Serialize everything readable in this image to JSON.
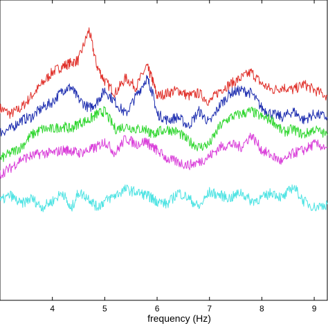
{
  "chart_data": {
    "type": "line",
    "title": "",
    "xlabel": "frequency (Hz)",
    "ylabel": "",
    "xlim": [
      3.0,
      9.25
    ],
    "ylim": [
      0,
      1
    ],
    "grid": false,
    "x_ticks": [
      {
        "value": 4,
        "label": "4"
      },
      {
        "value": 5,
        "label": "5"
      },
      {
        "value": 6,
        "label": "6"
      },
      {
        "value": 7,
        "label": "7"
      },
      {
        "value": 8,
        "label": "8"
      },
      {
        "value": 9,
        "label": "9"
      }
    ],
    "series": [
      {
        "color": "#e0302a",
        "x": [
          3.0,
          3.2,
          3.4,
          3.6,
          3.8,
          4.0,
          4.2,
          4.35,
          4.5,
          4.7,
          4.85,
          5.0,
          5.2,
          5.4,
          5.6,
          5.8,
          5.9,
          6.0,
          6.2,
          6.4,
          6.6,
          6.8,
          7.0,
          7.2,
          7.4,
          7.6,
          7.8,
          8.0,
          8.2,
          8.4,
          8.6,
          8.8,
          9.0,
          9.25
        ],
        "y": [
          0.64,
          0.62,
          0.64,
          0.68,
          0.72,
          0.76,
          0.78,
          0.79,
          0.8,
          0.9,
          0.78,
          0.73,
          0.69,
          0.74,
          0.71,
          0.78,
          0.74,
          0.68,
          0.69,
          0.7,
          0.68,
          0.69,
          0.66,
          0.7,
          0.72,
          0.74,
          0.76,
          0.72,
          0.7,
          0.71,
          0.7,
          0.72,
          0.7,
          0.68
        ]
      },
      {
        "color": "#1f2fb0",
        "x": [
          3.0,
          3.2,
          3.4,
          3.6,
          3.8,
          4.0,
          4.2,
          4.35,
          4.5,
          4.7,
          4.85,
          5.0,
          5.2,
          5.4,
          5.6,
          5.8,
          5.9,
          6.0,
          6.2,
          6.4,
          6.6,
          6.8,
          7.0,
          7.2,
          7.4,
          7.6,
          7.8,
          8.0,
          8.2,
          8.4,
          8.6,
          8.8,
          9.0,
          9.25
        ],
        "y": [
          0.56,
          0.57,
          0.6,
          0.61,
          0.64,
          0.66,
          0.7,
          0.71,
          0.67,
          0.64,
          0.66,
          0.7,
          0.66,
          0.62,
          0.68,
          0.74,
          0.7,
          0.62,
          0.6,
          0.61,
          0.58,
          0.63,
          0.59,
          0.65,
          0.69,
          0.7,
          0.69,
          0.64,
          0.62,
          0.61,
          0.63,
          0.6,
          0.62,
          0.61
        ]
      },
      {
        "color": "#2ed62e",
        "x": [
          3.0,
          3.2,
          3.4,
          3.6,
          3.8,
          4.0,
          4.2,
          4.35,
          4.5,
          4.7,
          4.85,
          5.0,
          5.2,
          5.4,
          5.6,
          5.8,
          5.9,
          6.0,
          6.2,
          6.4,
          6.6,
          6.8,
          7.0,
          7.2,
          7.4,
          7.6,
          7.8,
          8.0,
          8.2,
          8.4,
          8.6,
          8.8,
          9.0,
          9.25
        ],
        "y": [
          0.47,
          0.49,
          0.51,
          0.55,
          0.57,
          0.57,
          0.58,
          0.57,
          0.59,
          0.6,
          0.62,
          0.63,
          0.57,
          0.58,
          0.57,
          0.57,
          0.55,
          0.56,
          0.57,
          0.56,
          0.53,
          0.51,
          0.52,
          0.58,
          0.61,
          0.62,
          0.63,
          0.61,
          0.6,
          0.56,
          0.57,
          0.55,
          0.57,
          0.55
        ]
      },
      {
        "color": "#d93ed9",
        "x": [
          3.0,
          3.2,
          3.4,
          3.6,
          3.8,
          4.0,
          4.2,
          4.35,
          4.5,
          4.7,
          4.85,
          5.0,
          5.2,
          5.4,
          5.6,
          5.8,
          5.9,
          6.0,
          6.2,
          6.4,
          6.6,
          6.8,
          7.0,
          7.2,
          7.4,
          7.6,
          7.8,
          8.0,
          8.2,
          8.4,
          8.6,
          8.8,
          9.0,
          9.25
        ],
        "y": [
          0.42,
          0.44,
          0.47,
          0.48,
          0.49,
          0.49,
          0.5,
          0.5,
          0.49,
          0.5,
          0.51,
          0.53,
          0.49,
          0.54,
          0.52,
          0.53,
          0.51,
          0.5,
          0.47,
          0.46,
          0.45,
          0.46,
          0.48,
          0.51,
          0.52,
          0.51,
          0.55,
          0.5,
          0.48,
          0.46,
          0.49,
          0.5,
          0.52,
          0.51
        ]
      },
      {
        "color": "#4de3e3",
        "x": [
          3.0,
          3.2,
          3.4,
          3.6,
          3.8,
          4.0,
          4.2,
          4.35,
          4.5,
          4.7,
          4.85,
          5.0,
          5.2,
          5.4,
          5.6,
          5.8,
          5.9,
          6.0,
          6.2,
          6.4,
          6.6,
          6.8,
          7.0,
          7.2,
          7.4,
          7.6,
          7.8,
          8.0,
          8.2,
          8.4,
          8.6,
          8.8,
          9.0,
          9.25
        ],
        "y": [
          0.33,
          0.35,
          0.32,
          0.34,
          0.31,
          0.33,
          0.36,
          0.3,
          0.36,
          0.34,
          0.31,
          0.33,
          0.35,
          0.37,
          0.36,
          0.35,
          0.34,
          0.33,
          0.32,
          0.36,
          0.34,
          0.31,
          0.36,
          0.35,
          0.34,
          0.36,
          0.33,
          0.34,
          0.36,
          0.34,
          0.38,
          0.33,
          0.31,
          0.32
        ]
      }
    ]
  }
}
